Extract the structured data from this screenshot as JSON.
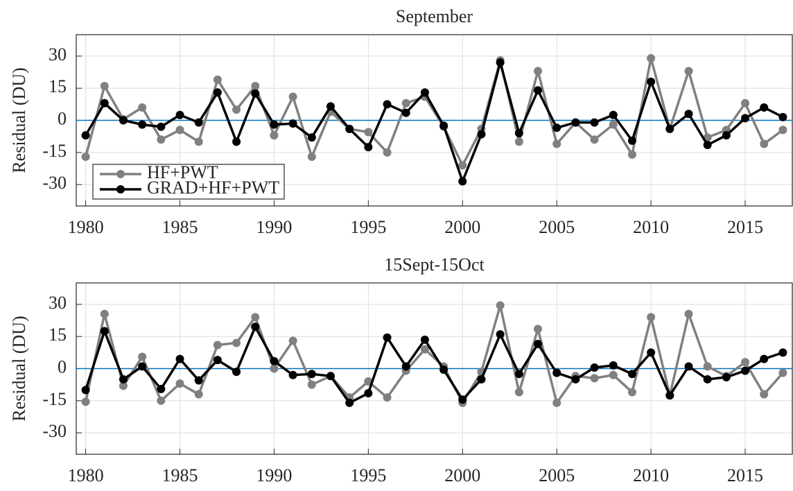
{
  "chart_data": [
    {
      "type": "line",
      "title": "September",
      "y_label": "Residual (DU)",
      "x": [
        1980,
        1981,
        1982,
        1983,
        1984,
        1985,
        1986,
        1987,
        1988,
        1989,
        1990,
        1991,
        1992,
        1993,
        1994,
        1995,
        1996,
        1997,
        1998,
        1999,
        2000,
        2001,
        2002,
        2003,
        2004,
        2005,
        2006,
        2007,
        2008,
        2009,
        2010,
        2011,
        2012,
        2013,
        2014,
        2015,
        2016,
        2017
      ],
      "series": [
        {
          "name": "HF+PWT",
          "color": "#808080",
          "values": [
            -17,
            16,
            0.5,
            6,
            -9,
            -4.5,
            -10,
            19,
            5,
            16,
            -7,
            11,
            -17,
            4,
            -4,
            -5.5,
            -15,
            8,
            11,
            -3,
            -21,
            -4,
            28,
            -10,
            23,
            -11,
            -1,
            -9,
            -2,
            -16,
            29,
            -4,
            23,
            -8,
            -4.5,
            8,
            -11,
            -4.5
          ]
        },
        {
          "name": "GRAD+HF+PWT",
          "color": "#000000",
          "values": [
            -7,
            8,
            0,
            -2,
            -3,
            2.5,
            -1,
            13,
            -10,
            12.5,
            -2,
            -1.5,
            -8,
            6.5,
            -4,
            -12.5,
            7.5,
            3.5,
            13,
            -2.5,
            -28.5,
            -6.5,
            27,
            -6,
            14,
            -3.5,
            -1,
            -1,
            2.5,
            -9.5,
            18,
            -4,
            3,
            -11.5,
            -7,
            1,
            6,
            1.5
          ]
        }
      ],
      "xlim": [
        1979.5,
        2017.5
      ],
      "xticks": [
        1980,
        1985,
        1990,
        1995,
        2000,
        2005,
        2010,
        2015
      ],
      "ylim": [
        -40,
        40
      ],
      "yticks": [
        -30,
        -15,
        0,
        15,
        30
      ],
      "zero_line": {
        "value": 0,
        "color": "#0072bd"
      },
      "grid": true,
      "legend": "lower left"
    },
    {
      "type": "line",
      "title": "15Sept-15Oct",
      "y_label": "Residual (DU)",
      "x": [
        1980,
        1981,
        1982,
        1983,
        1984,
        1985,
        1986,
        1987,
        1988,
        1989,
        1990,
        1991,
        1992,
        1993,
        1994,
        1995,
        1996,
        1997,
        1998,
        1999,
        2000,
        2001,
        2002,
        2003,
        2004,
        2005,
        2006,
        2007,
        2008,
        2009,
        2010,
        2011,
        2012,
        2013,
        2014,
        2015,
        2016,
        2017
      ],
      "series": [
        {
          "color": "#808080",
          "values": [
            -15.5,
            25.5,
            -8,
            5.5,
            -15,
            -7,
            -12,
            11,
            12,
            24,
            0,
            13,
            -7.5,
            -3.5,
            -13.5,
            -6,
            -13.5,
            -1,
            9,
            1,
            -16,
            -1.5,
            29.5,
            -11,
            18.5,
            -16,
            -3.5,
            -4.5,
            -3,
            -11,
            24,
            -12.5,
            25.5,
            1,
            -3.5,
            3,
            -12,
            -2
          ]
        },
        {
          "color": "#000000",
          "values": [
            -10,
            17.5,
            -5,
            1,
            -9.5,
            4.5,
            -5.5,
            4,
            -1.5,
            19.5,
            3.5,
            -3,
            -2.5,
            -3.5,
            -16,
            -11.5,
            14.5,
            1,
            13.5,
            -0.5,
            -14.5,
            -5,
            16,
            -2.5,
            11.5,
            -2,
            -5,
            0.5,
            1.5,
            -2.5,
            7.5,
            -12.5,
            1,
            -5,
            -4,
            -1,
            4.5,
            7.5
          ]
        }
      ],
      "xlim": [
        1979.5,
        2017.5
      ],
      "xticks": [
        1980,
        1985,
        1990,
        1995,
        2000,
        2005,
        2010,
        2015
      ],
      "ylim": [
        -40,
        40
      ],
      "yticks": [
        -30,
        -15,
        0,
        15,
        30
      ],
      "zero_line": {
        "value": 0,
        "color": "#0072bd"
      },
      "grid": true
    }
  ]
}
